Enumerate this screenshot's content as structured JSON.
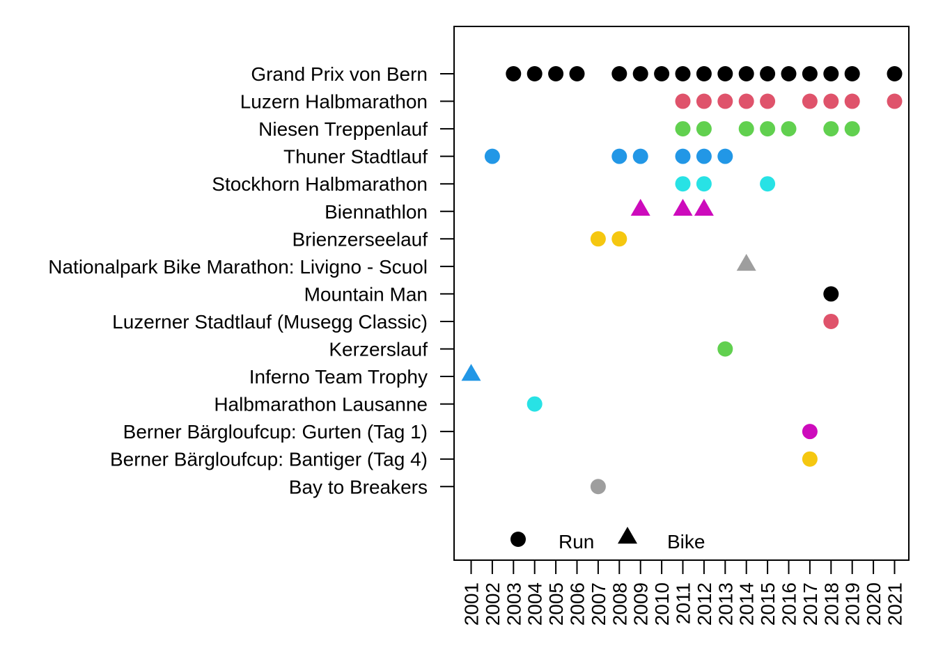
{
  "chart_data": {
    "type": "scatter",
    "title": "",
    "xlabel": "",
    "ylabel": "",
    "x_ticks": [
      "2001",
      "2002",
      "2003",
      "2004",
      "2005",
      "2006",
      "2007",
      "2008",
      "2009",
      "2010",
      "2011",
      "2012",
      "2013",
      "2014",
      "2015",
      "2016",
      "2017",
      "2018",
      "2019",
      "2020",
      "2021"
    ],
    "xlim": [
      2001,
      2021
    ],
    "grid": false,
    "legend": {
      "position": "bottom-left",
      "entries": [
        {
          "label": "Run",
          "shape": "circle"
        },
        {
          "label": "Bike",
          "shape": "triangle"
        }
      ]
    },
    "series": [
      {
        "event": "Grand Prix von Bern",
        "sport": "Run",
        "color": "#000000",
        "years": [
          2003,
          2004,
          2005,
          2006,
          2008,
          2009,
          2010,
          2011,
          2012,
          2013,
          2014,
          2015,
          2016,
          2017,
          2018,
          2019,
          2021
        ]
      },
      {
        "event": "Luzern Halbmarathon",
        "sport": "Run",
        "color": "#DF536B",
        "years": [
          2011,
          2012,
          2013,
          2014,
          2015,
          2017,
          2018,
          2019,
          2021
        ]
      },
      {
        "event": "Niesen Treppenlauf",
        "sport": "Run",
        "color": "#61D04F",
        "years": [
          2011,
          2012,
          2014,
          2015,
          2016,
          2018,
          2019
        ]
      },
      {
        "event": "Thuner Stadtlauf",
        "sport": "Run",
        "color": "#2297E6",
        "years": [
          2002,
          2008,
          2009,
          2011,
          2012,
          2013
        ]
      },
      {
        "event": "Stockhorn Halbmarathon",
        "sport": "Run",
        "color": "#28E2E5",
        "years": [
          2011,
          2012,
          2015
        ]
      },
      {
        "event": "Biennathlon",
        "sport": "Bike",
        "color": "#CD0BBC",
        "years": [
          2009,
          2011,
          2012
        ]
      },
      {
        "event": "Brienzerseelauf",
        "sport": "Run",
        "color": "#F5C710",
        "years": [
          2007,
          2008
        ]
      },
      {
        "event": "Nationalpark Bike Marathon: Livigno - Scuol",
        "sport": "Bike",
        "color": "#9E9E9E",
        "years": [
          2014
        ]
      },
      {
        "event": "Mountain Man",
        "sport": "Run",
        "color": "#000000",
        "years": [
          2018
        ]
      },
      {
        "event": "Luzerner Stadtlauf (Musegg Classic)",
        "sport": "Run",
        "color": "#DF536B",
        "years": [
          2018
        ]
      },
      {
        "event": "Kerzerslauf",
        "sport": "Run",
        "color": "#61D04F",
        "years": [
          2013
        ]
      },
      {
        "event": "Inferno Team Trophy",
        "sport": "Bike",
        "color": "#2297E6",
        "years": [
          2001
        ]
      },
      {
        "event": "Halbmarathon Lausanne",
        "sport": "Run",
        "color": "#28E2E5",
        "years": [
          2004
        ]
      },
      {
        "event": "Berner Bärgloufcup: Gurten (Tag 1)",
        "sport": "Run",
        "color": "#CD0BBC",
        "years": [
          2017
        ]
      },
      {
        "event": "Berner Bärgloufcup: Bantiger (Tag 4)",
        "sport": "Run",
        "color": "#F5C710",
        "years": [
          2017
        ]
      },
      {
        "event": "Bay to Breakers",
        "sport": "Run",
        "color": "#9E9E9E",
        "years": [
          2007
        ]
      }
    ]
  }
}
